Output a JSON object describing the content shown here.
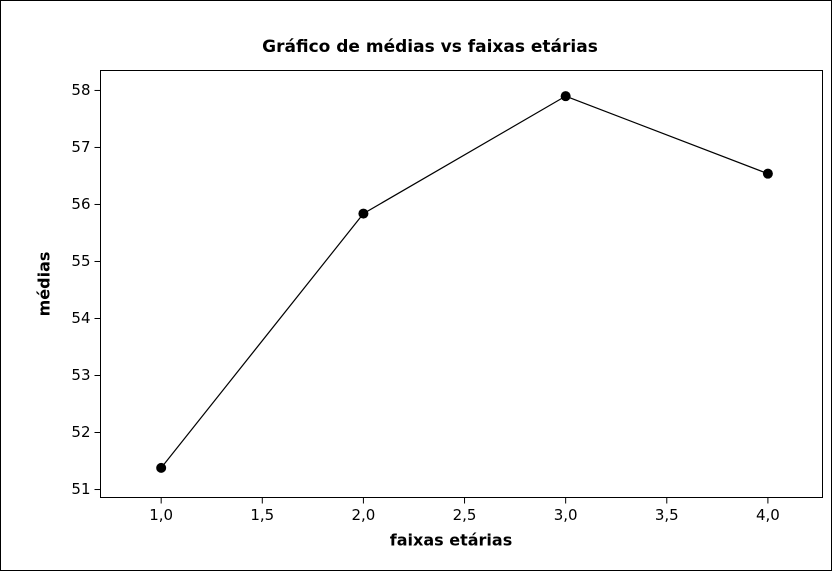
{
  "chart_data": {
    "type": "line",
    "title": "Gráfico de médias vs faixas etárias",
    "x_label": "faixas etárias",
    "y_label": "médias",
    "x": [
      1,
      2,
      3,
      4
    ],
    "values": [
      51.38,
      55.84,
      57.9,
      56.54
    ],
    "color": "#000000",
    "xlim": [
      0.7,
      4.27
    ],
    "xticks": [
      {
        "value": 1,
        "label": "1,0"
      },
      {
        "value": 1.5,
        "label": "1,5"
      },
      {
        "value": 2,
        "label": "2,0"
      },
      {
        "value": 2.5,
        "label": "2,5"
      },
      {
        "value": 3,
        "label": "3,0"
      },
      {
        "value": 3.5,
        "label": "3,5"
      },
      {
        "value": 4,
        "label": "4,0"
      }
    ],
    "ylim": [
      50.86,
      58.35
    ],
    "yticks": [
      51,
      52,
      53,
      54,
      55,
      56,
      57,
      58
    ],
    "grid": false
  }
}
